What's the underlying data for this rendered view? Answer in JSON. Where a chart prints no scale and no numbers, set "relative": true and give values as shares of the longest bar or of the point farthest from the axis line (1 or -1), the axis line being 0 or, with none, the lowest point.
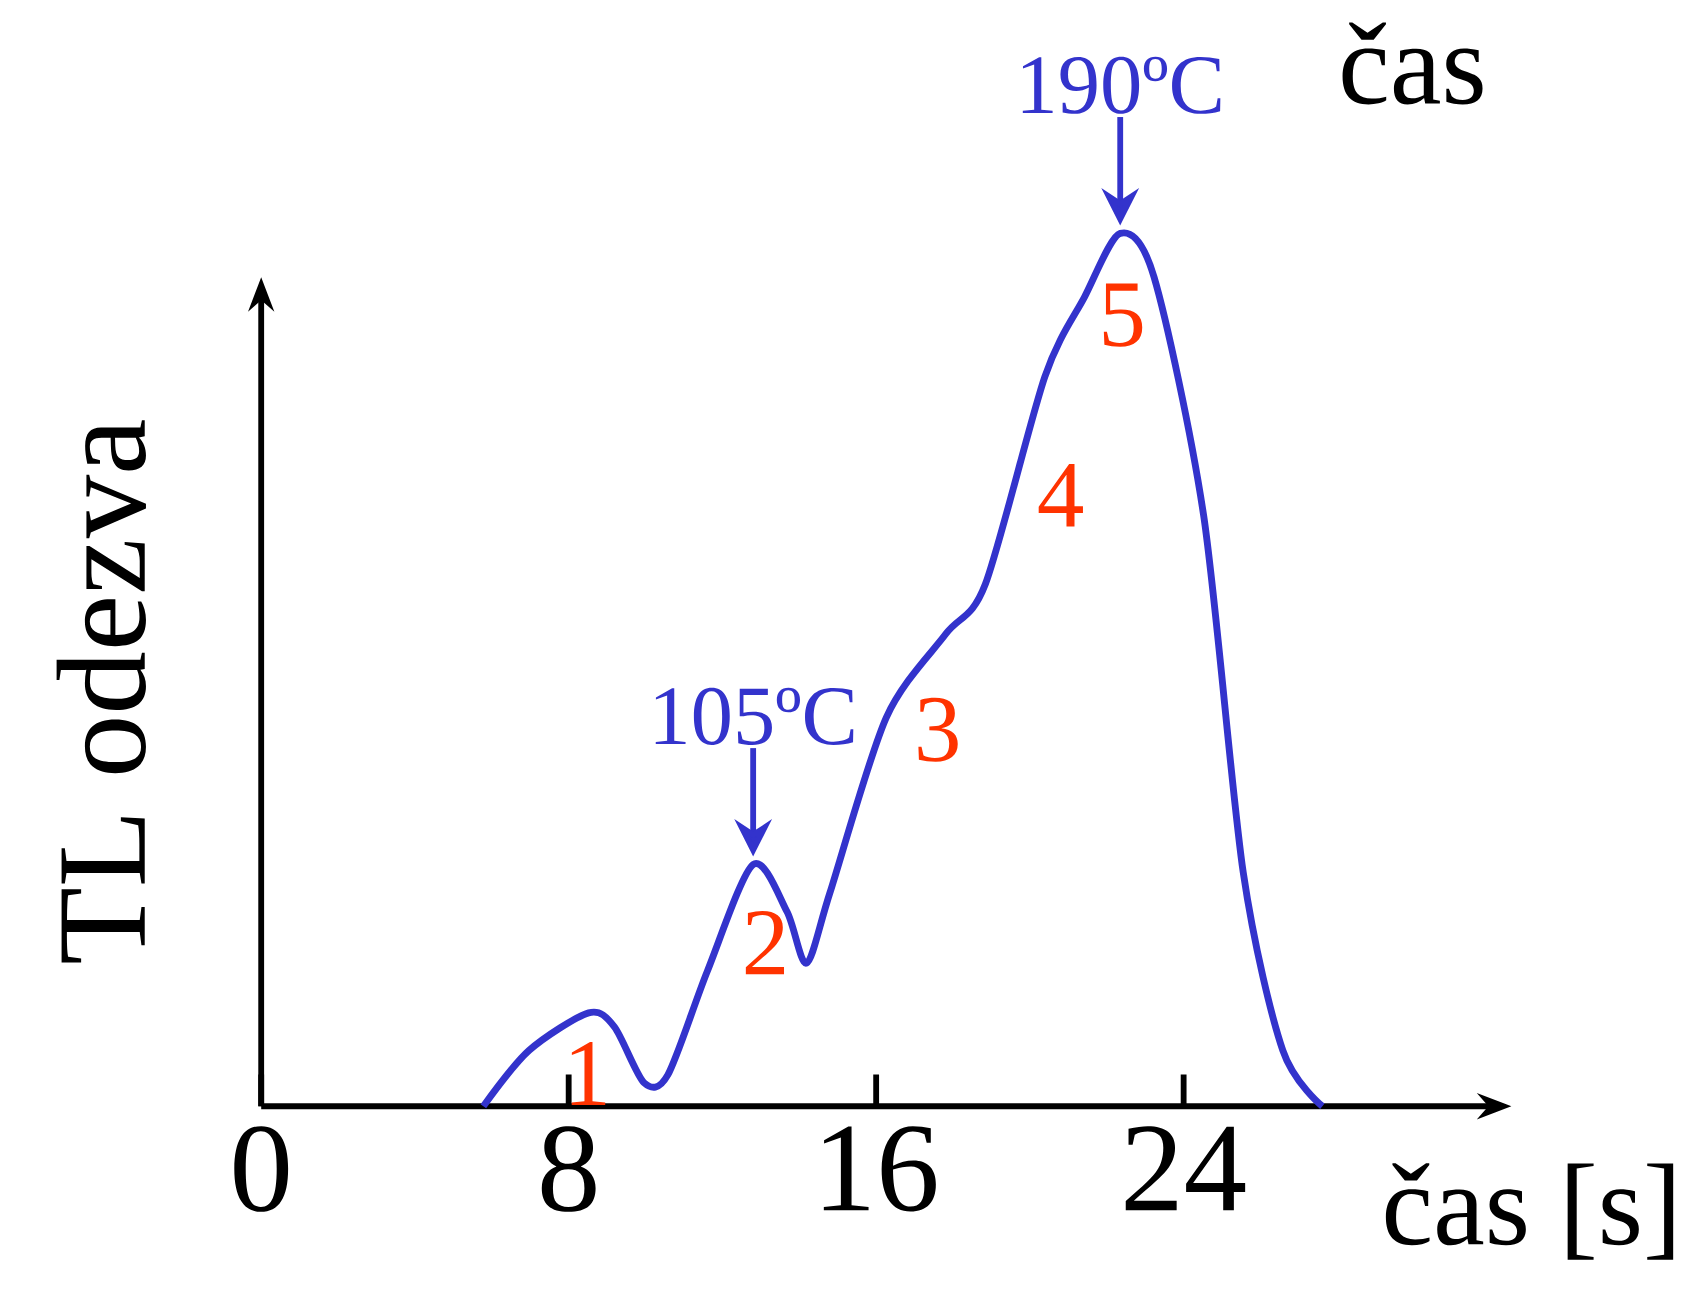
{
  "chart_data": {
    "type": "line",
    "relative": true,
    "xlabel": "čas [s]",
    "ylabel": "TL odezva",
    "x": [
      5.78,
      6.97,
      8.52,
      9.19,
      9.96,
      10.58,
      11.61,
      12.8,
      13.68,
      14.19,
      14.8,
      16.26,
      17.81,
      18.84,
      20.39,
      21.42,
      22.35,
      23.23,
      24.52,
      25.55,
      26.58,
      27.61
    ],
    "series": [
      {
        "color": "#3333cc",
        "values": [
          0,
          0.064,
          0.107,
          0.091,
          0.027,
          0.036,
          0.155,
          0.277,
          0.223,
          0.164,
          0.245,
          0.445,
          0.541,
          0.598,
          0.836,
          0.927,
          1.0,
          0.95,
          0.677,
          0.268,
          0.064,
          0
        ]
      }
    ],
    "xlim": [
      0,
      32
    ],
    "xticks": [
      0,
      8,
      16,
      24
    ],
    "annotations": [
      {
        "text": "105ºC",
        "x": 12.8,
        "y": 0.277
      },
      {
        "text": "190ºC",
        "x": 22.35,
        "y": 1.0
      },
      "1",
      "2",
      "3",
      "4",
      "5",
      "čas"
    ]
  }
}
